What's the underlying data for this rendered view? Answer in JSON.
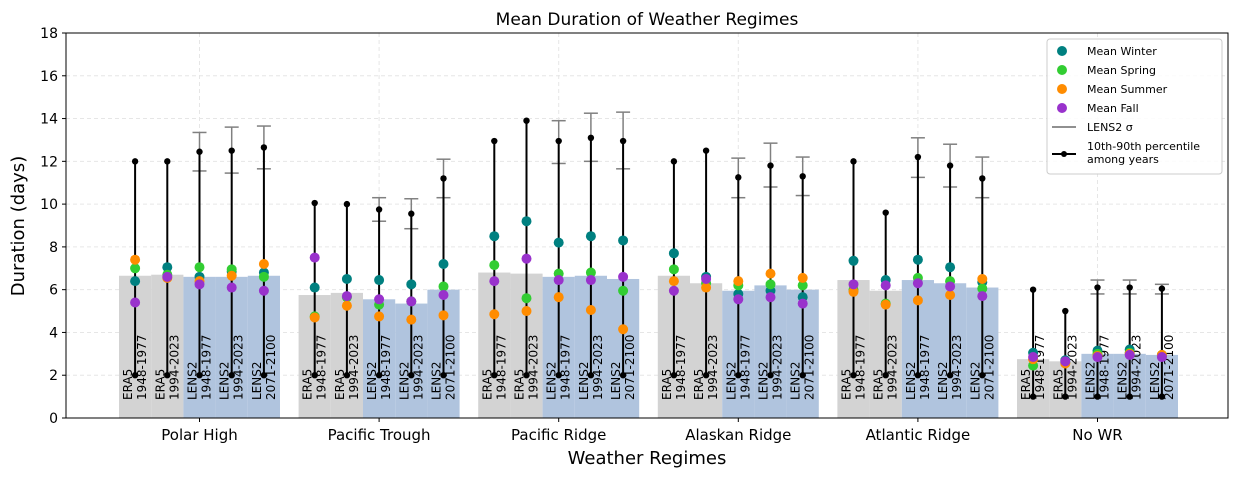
{
  "chart_data": {
    "type": "bar",
    "title": "Mean Duration of Weather Regimes",
    "xlabel": "Weather Regimes",
    "ylabel": "Duration (days)",
    "ylim": [
      0,
      18
    ],
    "yticks": [
      0,
      2,
      4,
      6,
      8,
      10,
      12,
      14,
      16,
      18
    ],
    "grid": true,
    "legend_placement": "top-right",
    "categories": [
      "Polar High",
      "Pacific Trough",
      "Pacific Ridge",
      "Alaskan Ridge",
      "Atlantic Ridge",
      "No WR"
    ],
    "datasets": [
      {
        "source": "ERA5",
        "period": "1948-1977",
        "ensemble": false
      },
      {
        "source": "ERA5",
        "period": "1994-2023",
        "ensemble": false
      },
      {
        "source": "LENS2",
        "period": "1948-1977",
        "ensemble": true
      },
      {
        "source": "LENS2",
        "period": "1994-2023",
        "ensemble": true
      },
      {
        "source": "LENS2",
        "period": "2071-2100",
        "ensemble": true
      }
    ],
    "bar_colors": {
      "ERA5": "#d3d3d3",
      "LENS2": "#b0c4de"
    },
    "bar_values": [
      [
        6.65,
        6.7,
        6.6,
        6.6,
        6.65
      ],
      [
        5.75,
        5.85,
        5.55,
        5.35,
        6.0
      ],
      [
        6.8,
        6.75,
        6.6,
        6.65,
        6.5
      ],
      [
        6.65,
        6.3,
        5.95,
        6.2,
        6.0
      ],
      [
        6.45,
        5.95,
        6.45,
        6.3,
        6.1
      ],
      [
        2.75,
        2.65,
        3.0,
        3.0,
        2.95
      ]
    ],
    "percentile_10_90": [
      [
        [
          2.0,
          12.0
        ],
        [
          2.0,
          12.0
        ],
        [
          2.0,
          12.45
        ],
        [
          2.0,
          12.5
        ],
        [
          2.0,
          12.65
        ]
      ],
      [
        [
          2.0,
          10.05
        ],
        [
          2.0,
          10.0
        ],
        [
          2.0,
          9.75
        ],
        [
          2.0,
          9.55
        ],
        [
          2.0,
          11.2
        ]
      ],
      [
        [
          2.0,
          12.95
        ],
        [
          2.0,
          13.9
        ],
        [
          2.0,
          12.95
        ],
        [
          2.0,
          13.1
        ],
        [
          2.0,
          12.95
        ]
      ],
      [
        [
          2.0,
          12.0
        ],
        [
          2.0,
          12.5
        ],
        [
          2.0,
          11.25
        ],
        [
          2.0,
          11.8
        ],
        [
          2.0,
          11.3
        ]
      ],
      [
        [
          2.0,
          12.0
        ],
        [
          2.0,
          9.6
        ],
        [
          2.0,
          12.2
        ],
        [
          2.0,
          11.8
        ],
        [
          2.0,
          11.2
        ]
      ],
      [
        [
          1.0,
          6.0
        ],
        [
          1.0,
          5.0
        ],
        [
          1.0,
          6.1
        ],
        [
          1.0,
          6.1
        ],
        [
          1.0,
          6.05
        ]
      ]
    ],
    "lens2_sigma": [
      [
        null,
        null,
        [
          11.55,
          13.35
        ],
        [
          11.45,
          13.6
        ],
        [
          11.65,
          13.65
        ]
      ],
      [
        null,
        null,
        [
          9.2,
          10.3
        ],
        [
          8.85,
          10.25
        ],
        [
          10.3,
          12.1
        ]
      ],
      [
        null,
        null,
        [
          11.9,
          13.9
        ],
        [
          12.0,
          14.25
        ],
        [
          11.65,
          14.3
        ]
      ],
      [
        null,
        null,
        [
          10.3,
          12.15
        ],
        [
          10.8,
          12.85
        ],
        [
          10.4,
          12.2
        ]
      ],
      [
        null,
        null,
        [
          11.25,
          13.1
        ],
        [
          10.8,
          12.8
        ],
        [
          10.3,
          12.2
        ]
      ],
      [
        null,
        null,
        [
          5.8,
          6.45
        ],
        [
          5.8,
          6.45
        ],
        [
          5.8,
          6.25
        ]
      ]
    ],
    "series": [
      {
        "name": "Mean Winter",
        "color": "#008080",
        "values": [
          [
            6.4,
            7.05,
            6.6,
            6.85,
            6.8
          ],
          [
            6.1,
            6.5,
            6.45,
            6.25,
            7.2
          ],
          [
            8.5,
            9.2,
            8.2,
            8.5,
            8.3
          ],
          [
            7.7,
            6.6,
            5.8,
            5.95,
            5.65
          ],
          [
            7.35,
            6.45,
            7.4,
            7.05,
            6.35
          ],
          [
            3.05,
            2.7,
            3.15,
            3.2,
            2.9
          ]
        ]
      },
      {
        "name": "Mean Spring",
        "color": "#32cd32",
        "values": [
          [
            7.0,
            6.7,
            7.05,
            6.95,
            6.6
          ],
          [
            4.75,
            5.65,
            5.3,
            5.45,
            6.15
          ],
          [
            7.15,
            5.6,
            6.75,
            6.8,
            5.95
          ],
          [
            6.95,
            6.3,
            6.2,
            6.25,
            6.2
          ],
          [
            6.0,
            5.35,
            6.55,
            6.4,
            6.05
          ],
          [
            2.45,
            2.6,
            3.0,
            3.05,
            2.95
          ]
        ]
      },
      {
        "name": "Mean Summer",
        "color": "#ff8c00",
        "values": [
          [
            7.4,
            6.55,
            6.4,
            6.65,
            7.2
          ],
          [
            4.7,
            5.25,
            4.75,
            4.6,
            4.8
          ],
          [
            4.85,
            5.0,
            5.65,
            5.05,
            4.15
          ],
          [
            6.4,
            6.1,
            6.4,
            6.75,
            6.55
          ],
          [
            5.9,
            5.3,
            5.5,
            5.75,
            6.5
          ],
          [
            2.75,
            2.55,
            2.9,
            3.0,
            2.95
          ]
        ]
      },
      {
        "name": "Mean Fall",
        "color": "#9932cc",
        "values": [
          [
            5.4,
            6.6,
            6.25,
            6.1,
            5.95
          ],
          [
            7.5,
            5.7,
            5.55,
            5.45,
            5.75
          ],
          [
            6.4,
            7.45,
            6.45,
            6.45,
            6.6
          ],
          [
            5.95,
            6.5,
            5.55,
            5.65,
            5.35
          ],
          [
            6.25,
            6.2,
            6.3,
            6.15,
            5.7
          ],
          [
            2.85,
            2.65,
            2.85,
            2.95,
            2.85
          ]
        ]
      }
    ],
    "legend": {
      "points": [
        "Mean Winter",
        "Mean Spring",
        "Mean Summer",
        "Mean Fall"
      ],
      "sigma_label": "LENS2 σ",
      "percentile_label_lines": [
        "10th-90th percentile",
        "among years"
      ]
    },
    "colors": {
      "sigma": "#808080",
      "percentile": "#000000"
    }
  }
}
